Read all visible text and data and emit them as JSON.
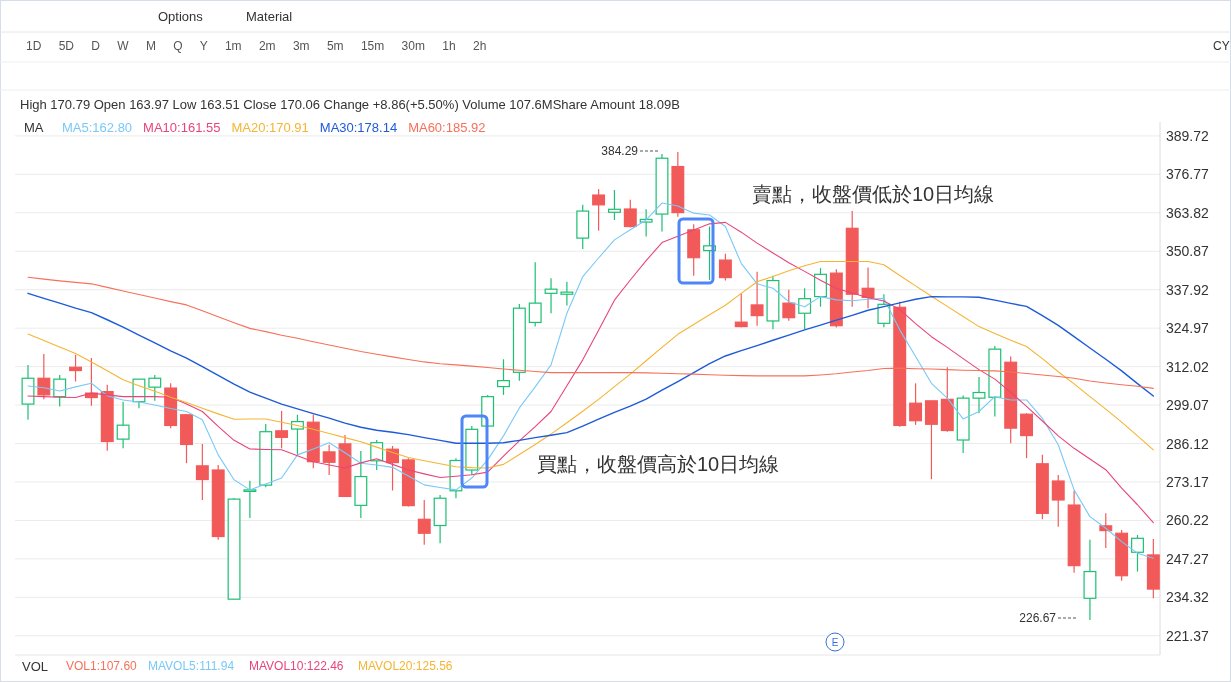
{
  "chart_data": {
    "type": "candlestick",
    "subtitle": "High 170.79 Open 163.97 Low 163.51 Close 170.06 Change +8.86(+5.50%) Volume 107.6MShare Amount 18.09B",
    "legend_title": "MA",
    "categories": [
      null,
      null,
      null,
      null,
      null,
      null,
      null,
      null,
      null,
      null,
      null,
      null,
      null,
      null,
      null,
      null,
      null,
      null,
      null,
      null,
      null,
      null,
      null,
      null,
      null,
      null,
      null,
      null,
      null,
      null,
      null,
      null,
      null,
      null,
      null,
      null,
      null,
      null,
      null,
      null,
      null,
      null,
      null,
      null,
      null,
      null,
      null,
      null,
      null,
      null,
      null,
      null,
      null,
      null,
      null,
      null,
      null,
      null,
      null,
      null,
      null,
      null,
      null,
      null,
      null,
      null,
      null,
      null,
      null,
      null,
      null,
      null
    ],
    "ohlc": [
      [
        299.4,
        312.6,
        294.1,
        308.1
      ],
      [
        308.1,
        316.3,
        301.0,
        302.5
      ],
      [
        301.9,
        309.2,
        298.6,
        307.8
      ],
      [
        311.8,
        316.0,
        307.0,
        310.7
      ],
      [
        303.1,
        314.9,
        298.8,
        301.6
      ],
      [
        303.6,
        305.9,
        283.7,
        286.8
      ],
      [
        287.6,
        300.2,
        284.5,
        292.3
      ],
      [
        300.2,
        307.8,
        298.0,
        307.8
      ],
      [
        305.1,
        309.2,
        300.5,
        308.1
      ],
      [
        304.8,
        306.4,
        291.3,
        292.2
      ],
      [
        295.8,
        296.1,
        279.5,
        285.8
      ],
      [
        278.6,
        286.0,
        267.1,
        274.0
      ],
      [
        277.2,
        278.9,
        253.7,
        254.8
      ],
      [
        233.7,
        267.7,
        233.7,
        267.4
      ],
      [
        270.1,
        273.6,
        261.0,
        270.5
      ],
      [
        272.1,
        292.7,
        271.4,
        290.1
      ],
      [
        290.4,
        297.1,
        284.5,
        288.2
      ],
      [
        291.0,
        295.8,
        282.3,
        293.5
      ],
      [
        293.3,
        295.8,
        277.8,
        280.0
      ],
      [
        283.3,
        285.7,
        275.5,
        279.8
      ],
      [
        286.0,
        289.0,
        268.3,
        268.3
      ],
      [
        265.3,
        283.6,
        261.0,
        275.0
      ],
      [
        280.3,
        287.3,
        277.2,
        286.4
      ],
      [
        284.2,
        285.3,
        270.3,
        279.7
      ],
      [
        280.6,
        281.2,
        264.9,
        265.2
      ],
      [
        260.6,
        267.1,
        252.0,
        255.9
      ],
      [
        258.5,
        268.8,
        252.5,
        267.7
      ],
      [
        270.2,
        281.2,
        267.7,
        280.4
      ],
      [
        277.2,
        292.0,
        275.5,
        290.9
      ],
      [
        292.0,
        302.5,
        292.0,
        301.9
      ],
      [
        305.3,
        314.5,
        302.5,
        307.3
      ],
      [
        310.1,
        333.1,
        307.3,
        331.7
      ],
      [
        326.9,
        347.2,
        325.5,
        333.4
      ],
      [
        336.7,
        341.8,
        330.0,
        338.1
      ],
      [
        336.4,
        340.6,
        332.6,
        337.1
      ],
      [
        355.3,
        366.5,
        351.6,
        364.4
      ],
      [
        369.8,
        371.8,
        357.8,
        366.5
      ],
      [
        364.0,
        371.5,
        361.4,
        365.0
      ],
      [
        365.1,
        368.2,
        358.9,
        359.2
      ],
      [
        360.7,
        365.0,
        355.8,
        361.6
      ],
      [
        363.4,
        383.6,
        357.5,
        382.2
      ],
      [
        379.4,
        384.29,
        362.5,
        363.9
      ],
      [
        358.1,
        360.0,
        342.6,
        348.7
      ],
      [
        351.1,
        359.2,
        341.2,
        352.7
      ],
      [
        347.9,
        350.0,
        341.0,
        342.0
      ],
      [
        327.0,
        336.7,
        325.3,
        325.5
      ],
      [
        332.8,
        344.0,
        325.8,
        329.2
      ],
      [
        327.4,
        342.6,
        324.6,
        341.0
      ],
      [
        333.4,
        337.9,
        327.5,
        328.5
      ],
      [
        330.0,
        338.4,
        324.6,
        334.9
      ],
      [
        335.6,
        345.2,
        332.2,
        343.1
      ],
      [
        343.5,
        344.8,
        325.2,
        325.8
      ],
      [
        358.6,
        364.4,
        332.2,
        336.4
      ],
      [
        338.4,
        345.4,
        331.7,
        335.3
      ],
      [
        326.6,
        336.4,
        325.3,
        333.0
      ],
      [
        332.0,
        333.9,
        291.8,
        292.2
      ],
      [
        299.7,
        306.4,
        292.4,
        293.8
      ],
      [
        300.5,
        300.5,
        274.1,
        292.6
      ],
      [
        301.0,
        311.8,
        290.1,
        290.5
      ],
      [
        287.3,
        302.3,
        282.9,
        301.4
      ],
      [
        301.4,
        308.5,
        296.3,
        303.3
      ],
      [
        301.7,
        319.0,
        295.2,
        317.9
      ],
      [
        313.5,
        315.4,
        286.2,
        291.3
      ],
      [
        296.0,
        296.3,
        281.2,
        288.8
      ],
      [
        279.3,
        282.3,
        260.6,
        262.6
      ],
      [
        273.5,
        275.5,
        258.1,
        267.1
      ],
      [
        265.4,
        270.2,
        242.6,
        245.0
      ],
      [
        234.0,
        253.7,
        226.67,
        243.0
      ],
      [
        258.4,
        262.6,
        250.9,
        256.8
      ],
      [
        255.9,
        257.0,
        239.9,
        241.6
      ],
      [
        249.5,
        255.3,
        243.0,
        254.2
      ],
      [
        248.6,
        254.0,
        234.0,
        237.1
      ]
    ],
    "colors": [
      "#1dbf73",
      "#f25a5a",
      "#1dbf73",
      "#f25a5a",
      "#f25a5a",
      "#f25a5a",
      "#1dbf73",
      "#1dbf73",
      "#1dbf73",
      "#f25a5a",
      "#f25a5a",
      "#f25a5a",
      "#f25a5a",
      "#1dbf73",
      "#1dbf73",
      "#1dbf73",
      "#f25a5a",
      "#1dbf73",
      "#f25a5a",
      "#f25a5a",
      "#f25a5a",
      "#1dbf73",
      "#1dbf73",
      "#f25a5a",
      "#f25a5a",
      "#f25a5a",
      "#1dbf73",
      "#1dbf73",
      "#1dbf73",
      "#1dbf73",
      "#1dbf73",
      "#1dbf73",
      "#1dbf73",
      "#1dbf73",
      "#1dbf73",
      "#1dbf73",
      "#f25a5a",
      "#1dbf73",
      "#f25a5a",
      "#1dbf73",
      "#1dbf73",
      "#f25a5a",
      "#f25a5a",
      "#1dbf73",
      "#f25a5a",
      "#f25a5a",
      "#f25a5a",
      "#1dbf73",
      "#f25a5a",
      "#1dbf73",
      "#1dbf73",
      "#f25a5a",
      "#f25a5a",
      "#f25a5a",
      "#1dbf73",
      "#f25a5a",
      "#f25a5a",
      "#f25a5a",
      "#f25a5a",
      "#1dbf73",
      "#1dbf73",
      "#1dbf73",
      "#f25a5a",
      "#f25a5a",
      "#f25a5a",
      "#f25a5a",
      "#f25a5a",
      "#1dbf73",
      "#f25a5a",
      "#f25a5a",
      "#1dbf73",
      "#f25a5a"
    ],
    "series": [
      {
        "name": "MA5:162.80",
        "type": "line",
        "color": "#79c9f7",
        "values": [
          305.5,
          304.9,
          303.8,
          305.2,
          306.4,
          302.2,
          300.8,
          300.1,
          299.1,
          297.9,
          296.9,
          294.1,
          282.3,
          273.9,
          270.5,
          272.5,
          274.5,
          282.3,
          284.3,
          286.4,
          283.0,
          279.5,
          278.9,
          278.1,
          275.2,
          272.2,
          271.3,
          270.5,
          274.5,
          280.6,
          288.7,
          298.1,
          305.2,
          312.6,
          330.0,
          342.3,
          348.6,
          354.7,
          358.1,
          361.4,
          367.1,
          366.1,
          363.7,
          363.1,
          359.2,
          346.8,
          339.9,
          338.4,
          333.9,
          332.2,
          335.6,
          334.5,
          334.2,
          334.7,
          335.0,
          324.4,
          315.4,
          306.4,
          301.4,
          294.4,
          296.9,
          301.9,
          300.8,
          300.8,
          294.6,
          285.7,
          270.5,
          261.5,
          257.6,
          253.1,
          249.2,
          247.5
        ]
      },
      {
        "name": "MA10:161.55",
        "type": "line",
        "color": "#e8457a",
        "values": [
          302.1,
          301.9,
          301.7,
          301.6,
          303.1,
          302.5,
          301.9,
          301.9,
          301.9,
          301.7,
          299.4,
          296.9,
          291.9,
          287.2,
          284.3,
          284.1,
          284.0,
          282.0,
          280.0,
          278.9,
          277.9,
          279.6,
          281.0,
          279.1,
          277.2,
          275.9,
          274.7,
          275.1,
          275.6,
          276.5,
          281.9,
          287.0,
          291.8,
          296.9,
          305.6,
          314.3,
          324.3,
          334.4,
          341.2,
          347.7,
          353.8,
          355.9,
          358.0,
          360.1,
          360.6,
          357.3,
          353.6,
          350.3,
          347.0,
          344.1,
          341.1,
          338.3,
          336.8,
          335.2,
          334.1,
          331.3,
          326.5,
          322.1,
          318.5,
          314.7,
          311.0,
          307.8,
          303.4,
          298.6,
          293.7,
          288.7,
          284.5,
          280.9,
          277.3,
          271.1,
          265.5,
          259.5
        ]
      },
      {
        "name": "MA20:170.91",
        "type": "line",
        "color": "#f5b533",
        "values": [
          323.0,
          320.8,
          318.6,
          316.4,
          313.6,
          310.6,
          307.6,
          305.6,
          303.7,
          301.7,
          299.9,
          298.0,
          296.1,
          294.3,
          294.4,
          294.4,
          293.3,
          292.2,
          290.9,
          289.5,
          288.1,
          286.7,
          284.9,
          283.1,
          281.4,
          280.3,
          279.3,
          278.3,
          278.0,
          277.9,
          279.1,
          282.4,
          285.8,
          289.3,
          293.1,
          297.0,
          301.0,
          305.3,
          309.5,
          314.0,
          318.5,
          322.9,
          326.2,
          329.5,
          332.7,
          336.7,
          340.6,
          342.4,
          344.3,
          346.0,
          347.4,
          347.4,
          347.4,
          347.4,
          346.3,
          342.7,
          339.2,
          335.7,
          332.3,
          328.9,
          325.5,
          323.2,
          320.9,
          318.8,
          314.7,
          310.3,
          306.2,
          301.9,
          297.7,
          293.3,
          288.7,
          284.0
        ]
      },
      {
        "name": "MA30:178.14",
        "type": "line",
        "color": "#1e5bd8",
        "values": [
          336.7,
          335.0,
          333.4,
          331.7,
          330.2,
          327.8,
          325.3,
          322.6,
          320.0,
          317.3,
          314.9,
          312.0,
          309.1,
          306.1,
          303.4,
          301.4,
          299.4,
          297.8,
          296.2,
          294.7,
          293.0,
          291.6,
          290.6,
          289.9,
          289.1,
          288.1,
          287.2,
          286.2,
          286.2,
          286.2,
          286.4,
          287.2,
          288.1,
          288.9,
          289.8,
          292.0,
          294.3,
          296.6,
          298.7,
          301.1,
          304.1,
          307.0,
          310.0,
          313.0,
          315.6,
          317.4,
          319.1,
          320.9,
          322.6,
          324.4,
          326.0,
          327.7,
          329.3,
          331.0,
          332.2,
          333.5,
          334.7,
          335.6,
          335.5,
          335.5,
          335.4,
          334.4,
          333.3,
          332.3,
          329.2,
          325.9,
          322.1,
          318.3,
          314.5,
          310.6,
          306.3,
          302.1
        ]
      },
      {
        "name": "MA60:185.92",
        "type": "line",
        "color": "#f7705a",
        "values": [
          342.1,
          341.5,
          340.9,
          340.4,
          339.9,
          338.7,
          337.5,
          336.3,
          335.1,
          333.9,
          332.8,
          330.8,
          328.8,
          326.8,
          324.9,
          323.8,
          322.6,
          321.6,
          320.4,
          319.3,
          318.2,
          317.1,
          316.2,
          315.3,
          314.4,
          313.6,
          313.0,
          312.6,
          312.2,
          311.7,
          311.2,
          310.8,
          310.4,
          310.0,
          310.0,
          310.0,
          310.0,
          310.0,
          310.0,
          309.9,
          309.8,
          309.6,
          309.5,
          309.3,
          309.1,
          309.0,
          308.9,
          308.9,
          308.9,
          308.9,
          309.2,
          309.6,
          310.2,
          310.7,
          311.4,
          311.5,
          311.3,
          311.2,
          311.0,
          310.8,
          310.7,
          310.6,
          310.2,
          309.7,
          309.2,
          308.7,
          308.1,
          307.2,
          306.5,
          305.9,
          305.4,
          304.7
        ]
      }
    ],
    "ylim": [
      214.9,
      394.4
    ],
    "yticks": [
      221.37,
      234.32,
      247.27,
      260.22,
      273.17,
      286.12,
      299.07,
      312.02,
      324.97,
      337.92,
      350.87,
      363.82,
      376.77,
      389.72
    ],
    "grid": "y",
    "legend": "top left",
    "tick_labels": "y",
    "marker": "none",
    "line_style": "solid",
    "annotations": [
      "384.29",
      "226.67",
      "賣點，收盤價低於10日均線",
      "買點，收盤價高於10日均線",
      "Options",
      "Material",
      "1D 5D D W M Q Y 1m 2m 3m 5m 15m 30m 1h 2h",
      "CY",
      "E",
      "VOL",
      "VOL1:107.60",
      "MAVOL5:111.94",
      "MAVOL10:122.46",
      "MAVOL20:125.56"
    ]
  }
}
